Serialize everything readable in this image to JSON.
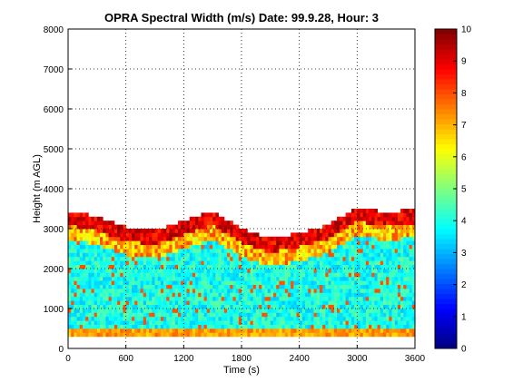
{
  "chart_data": {
    "type": "heatmap",
    "title": "OPRA Spectral Width (m/s)  Date: 99.9.28, Hour: 3",
    "xlabel": "Time (s)",
    "ylabel": "Height (m AGL)",
    "xlim": [
      0,
      3600
    ],
    "ylim": [
      0,
      8000
    ],
    "xticks": [
      "0",
      "600",
      "1200",
      "1800",
      "2400",
      "3000",
      "3600"
    ],
    "yticks": [
      "0",
      "1000",
      "2000",
      "3000",
      "4000",
      "5000",
      "6000",
      "7000",
      "8000"
    ],
    "grid": true,
    "colormap": "jet",
    "colorbar": {
      "range": [
        0,
        10
      ],
      "ticks": [
        "0",
        "1",
        "2",
        "3",
        "4",
        "5",
        "6",
        "7",
        "8",
        "9",
        "10"
      ]
    },
    "data_height_range": [
      300,
      3700
    ],
    "background_color": "#ffffff",
    "heatmap_profile": {
      "x": [
        0,
        300,
        600,
        900,
        1200,
        1500,
        1800,
        2100,
        2400,
        2700,
        3000,
        3300,
        3600
      ],
      "echo_top": [
        3400,
        3250,
        3000,
        2900,
        3150,
        3400,
        2950,
        2700,
        2850,
        3050,
        3500,
        3350,
        3450
      ],
      "low_value": 3.2,
      "high_value": 9.0
    }
  }
}
